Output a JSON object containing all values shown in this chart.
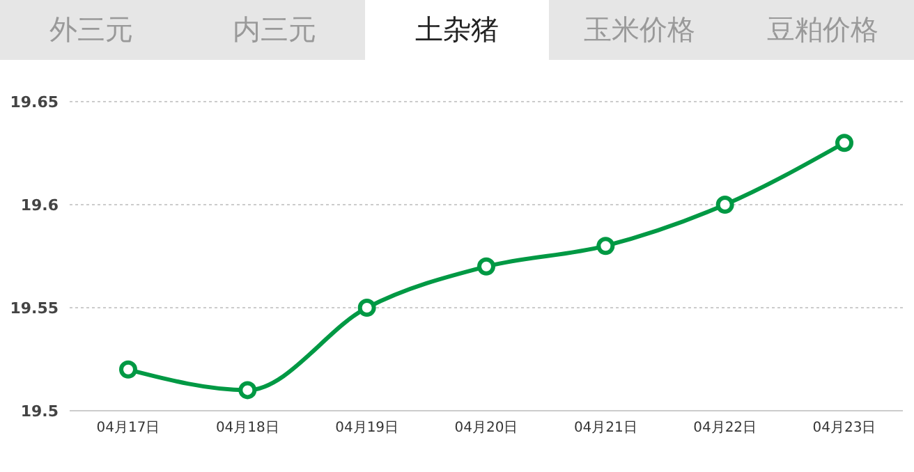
{
  "chart_data": {
    "type": "line",
    "title": "土杂猪",
    "annotations": [
      "外三元",
      "内三元",
      "玉米价格",
      "豆粕价格"
    ],
    "categories": [
      "04月17日",
      "04月18日",
      "04月19日",
      "04月20日",
      "04月21日",
      "04月22日",
      "04月23日"
    ],
    "series": [
      {
        "color": "#009944",
        "values": [
          19.52,
          19.51,
          19.55,
          19.57,
          19.58,
          19.6,
          19.63
        ]
      }
    ],
    "ylim": [
      19.5,
      19.65
    ],
    "yticks": [
      19.5,
      19.55,
      19.6,
      19.65
    ],
    "grid": "y",
    "marker": "circle",
    "line_style": "solid",
    "legend": false
  }
}
